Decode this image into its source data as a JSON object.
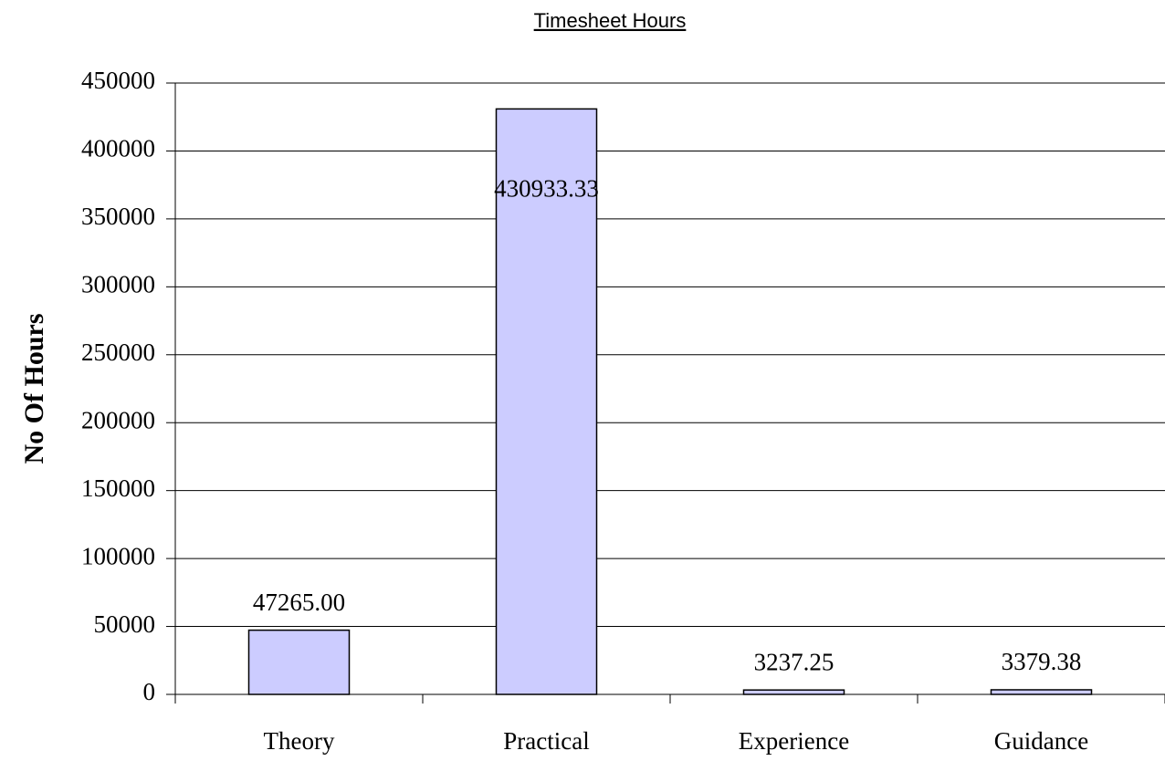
{
  "chart_data": {
    "type": "bar",
    "title": "Timesheet Hours",
    "y_label": "No Of Hours",
    "categories": [
      "Theory",
      "Practical",
      "Experience",
      "Guidance"
    ],
    "values": [
      47265,
      430933.33,
      3237.25,
      3379.38
    ],
    "value_labels": [
      "47265.00",
      "430933.33",
      "3237.25",
      "3379.38"
    ],
    "color": "#ccccff",
    "ylim": [
      0,
      450000
    ],
    "yticks": [
      0,
      50000,
      100000,
      150000,
      200000,
      250000,
      300000,
      350000,
      400000,
      450000
    ],
    "grid": true
  }
}
